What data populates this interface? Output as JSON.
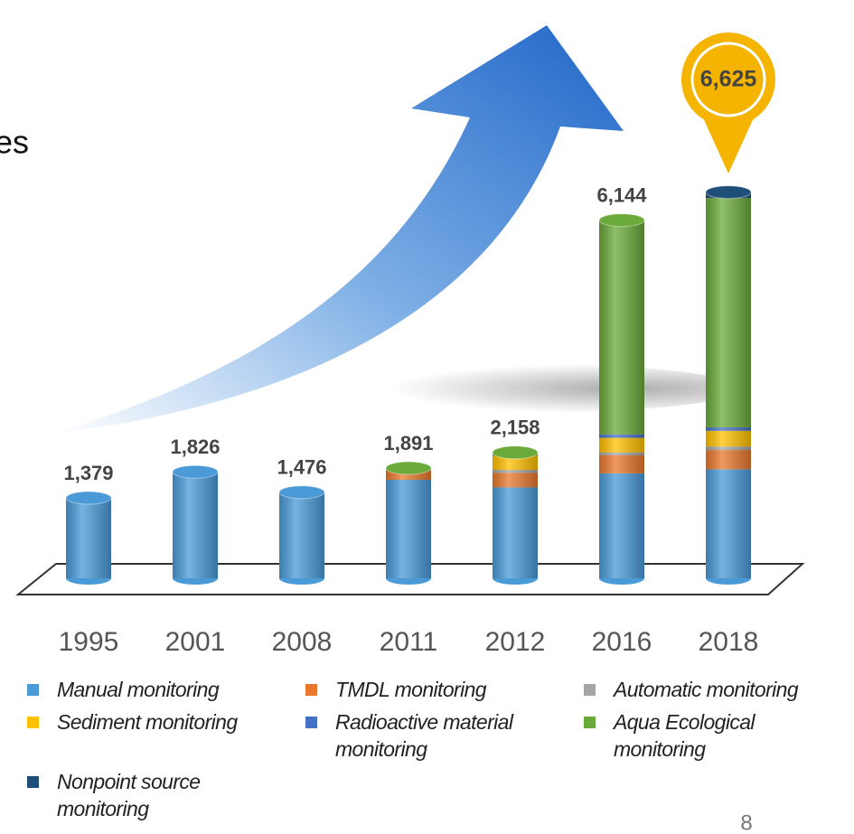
{
  "chart_data": {
    "type": "stacked_bar",
    "title_fragment": "es",
    "page_number": "8",
    "categories": [
      "1995",
      "2001",
      "2008",
      "2011",
      "2012",
      "2016",
      "2018"
    ],
    "totals": [
      1379,
      1826,
      1476,
      1891,
      2158,
      6144,
      6625
    ],
    "total_labels": [
      "1,379",
      "1,826",
      "1,476",
      "1,891",
      "2,158",
      "6,144",
      "6,625"
    ],
    "series": [
      {
        "name": "Manual monitoring",
        "color": "#4a9ad8",
        "values": [
          1379,
          1826,
          1476,
          1690,
          1560,
          1800,
          1870
        ]
      },
      {
        "name": "TMDL monitoring",
        "color": "#e9782d",
        "values": [
          0,
          0,
          0,
          160,
          250,
          310,
          330
        ]
      },
      {
        "name": "Automatic monitoring",
        "color": "#a5a5a5",
        "values": [
          0,
          0,
          0,
          20,
          50,
          50,
          60
        ]
      },
      {
        "name": "Sediment monitoring",
        "color": "#ffc000",
        "values": [
          0,
          0,
          0,
          0,
          240,
          250,
          270
        ]
      },
      {
        "name": "Radioactive material monitoring",
        "color": "#4472c4",
        "values": [
          0,
          0,
          0,
          0,
          0,
          60,
          60
        ]
      },
      {
        "name": "Aqua Ecological monitoring",
        "color": "#6aaa3a",
        "values": [
          0,
          0,
          0,
          21,
          58,
          3674,
          3935
        ]
      },
      {
        "name": "Nonpoint source monitoring",
        "color": "#1f4e79",
        "values": [
          0,
          0,
          0,
          0,
          0,
          0,
          100
        ]
      }
    ]
  }
}
